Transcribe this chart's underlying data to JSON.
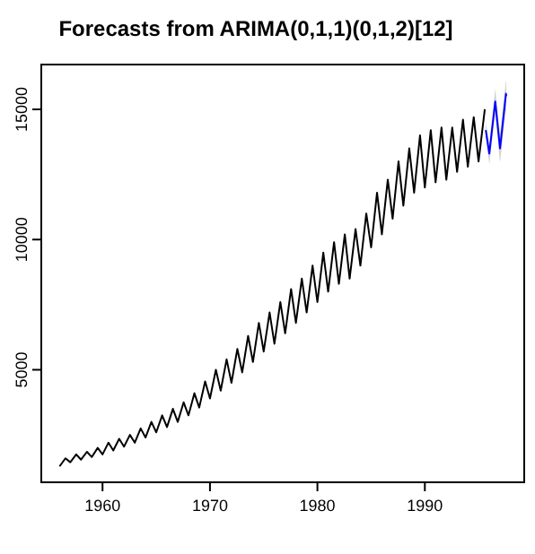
{
  "chart_data": {
    "type": "line",
    "title": "Forecasts from ARIMA(0,1,1)(0,1,2)[12]",
    "xlim": [
      1954.3,
      1999.25
    ],
    "ylim": [
      680,
      16720
    ],
    "xticks": [
      1960,
      1970,
      1980,
      1990
    ],
    "yticks": [
      5000,
      10000,
      15000
    ],
    "grid": false,
    "line_style": "solid",
    "marker": "none",
    "series": [
      {
        "color": "#000000",
        "x": [
          1956,
          1956.55,
          1957,
          1957.55,
          1958,
          1958.55,
          1959,
          1959.55,
          1960,
          1960.55,
          1961,
          1961.55,
          1962,
          1962.55,
          1963,
          1963.55,
          1964,
          1964.55,
          1965,
          1965.55,
          1966,
          1966.55,
          1967,
          1967.55,
          1968,
          1968.55,
          1969,
          1969.55,
          1970,
          1970.55,
          1971,
          1971.55,
          1972,
          1972.55,
          1973,
          1973.55,
          1974,
          1974.55,
          1975,
          1975.55,
          1976,
          1976.55,
          1977,
          1977.55,
          1978,
          1978.55,
          1979,
          1979.55,
          1980,
          1980.55,
          1981,
          1981.55,
          1982,
          1982.55,
          1983,
          1983.55,
          1984,
          1984.55,
          1985,
          1985.55,
          1986,
          1986.55,
          1987,
          1987.55,
          1988,
          1988.55,
          1989,
          1989.55,
          1990,
          1990.55,
          1991,
          1991.55,
          1992,
          1992.55,
          1993,
          1993.55,
          1994,
          1994.55,
          1995,
          1995.58
        ],
        "values": [
          1290,
          1600,
          1450,
          1750,
          1550,
          1850,
          1650,
          2000,
          1750,
          2200,
          1900,
          2350,
          2050,
          2500,
          2200,
          2750,
          2400,
          3000,
          2600,
          3250,
          2800,
          3500,
          3000,
          3750,
          3250,
          4100,
          3550,
          4550,
          3900,
          5000,
          4200,
          5400,
          4500,
          5800,
          4900,
          6300,
          5300,
          6800,
          5700,
          7200,
          6000,
          7600,
          6400,
          8100,
          6800,
          8500,
          7200,
          9000,
          7600,
          9500,
          8000,
          9900,
          8300,
          10200,
          8500,
          10400,
          9000,
          11000,
          9700,
          11800,
          10200,
          12300,
          10800,
          13000,
          11300,
          13500,
          11800,
          14000,
          12000,
          14200,
          12200,
          14300,
          12300,
          14300,
          12600,
          14600,
          12800,
          14700,
          13000,
          15000
        ]
      },
      {
        "color": "#0000ff",
        "x": [
          1995.67,
          1996,
          1996.55,
          1997,
          1997.55,
          1997.58
        ],
        "values": [
          14200,
          13300,
          15300,
          13500,
          15600,
          15500
        ],
        "lower": [
          13900,
          12900,
          14800,
          12950,
          15000,
          14900
        ],
        "upper": [
          14500,
          13700,
          15800,
          14050,
          16100,
          16050
        ]
      }
    ]
  }
}
